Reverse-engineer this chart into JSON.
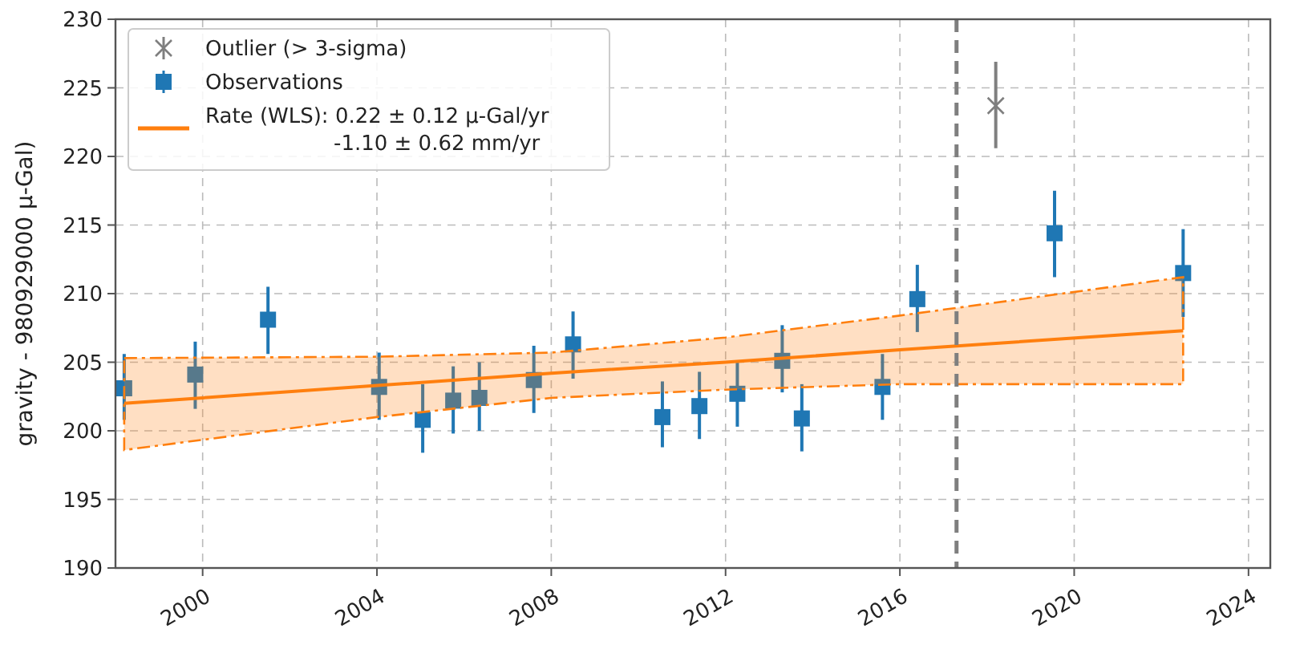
{
  "chart_data": {
    "type": "scatter",
    "ylabel": "gravity - 980929000 μ-Gal)",
    "xlim": [
      1998,
      2024.5
    ],
    "ylim": [
      190,
      230
    ],
    "xticks": [
      2000,
      2004,
      2008,
      2012,
      2016,
      2020,
      2024
    ],
    "yticks": [
      190,
      195,
      200,
      205,
      210,
      215,
      220,
      225,
      230
    ],
    "grid": true,
    "legend": "top left",
    "series": [
      {
        "name": "Outlier (> 3-sigma)",
        "marker": "cross",
        "color": "#7f7f7f",
        "x": [
          2018.2
        ],
        "values": [
          223.7
        ],
        "errors": [
          [
            220.6,
            226.9
          ]
        ]
      },
      {
        "name": "Observations",
        "marker": "square",
        "color": "#1f77b4",
        "x": [
          1998.2,
          1999.83,
          2001.5,
          2004.05,
          2005.05,
          2005.75,
          2006.35,
          2007.6,
          2008.5,
          2010.55,
          2011.4,
          2012.27,
          2013.3,
          2013.75,
          2015.6,
          2016.4,
          2019.55,
          2022.5
        ],
        "values": [
          203.1,
          204.1,
          208.1,
          203.2,
          200.8,
          202.2,
          202.4,
          203.7,
          206.3,
          201.0,
          201.8,
          202.7,
          205.1,
          200.9,
          203.2,
          209.6,
          214.4,
          211.5
        ],
        "errors": [
          [
            200.8,
            205.6
          ],
          [
            201.6,
            206.5
          ],
          [
            205.6,
            210.5
          ],
          [
            200.8,
            205.7
          ],
          [
            198.4,
            203.4
          ],
          [
            199.8,
            204.7
          ],
          [
            200.0,
            205.0
          ],
          [
            201.3,
            206.2
          ],
          [
            203.8,
            208.7
          ],
          [
            198.8,
            203.6
          ],
          [
            199.4,
            204.3
          ],
          [
            200.3,
            205.1
          ],
          [
            202.8,
            207.7
          ],
          [
            198.5,
            203.4
          ],
          [
            200.8,
            205.6
          ],
          [
            207.2,
            212.1
          ],
          [
            211.2,
            217.5
          ],
          [
            208.3,
            214.7
          ]
        ]
      },
      {
        "name": "Rate (WLS): 0.22 ± 0.12 μ-Gal/yr\n-1.10 ± 0.62 mm/yr",
        "type": "line",
        "marker": "none",
        "color": "#ff7f0e",
        "x": [
          1998.2,
          2004,
          2008,
          2012,
          2016,
          2022.5
        ],
        "values": [
          202.0,
          203.3,
          204.2,
          205.0,
          205.9,
          207.3
        ],
        "lower": [
          198.6,
          201.0,
          202.4,
          203.0,
          203.4,
          203.4
        ],
        "upper": [
          205.3,
          205.4,
          205.7,
          206.8,
          208.4,
          211.2
        ]
      }
    ],
    "ref_lines": [
      {
        "axis": "x",
        "value": 2017.3,
        "color": "#7f7f7f",
        "line_style": "dashed"
      }
    ]
  }
}
